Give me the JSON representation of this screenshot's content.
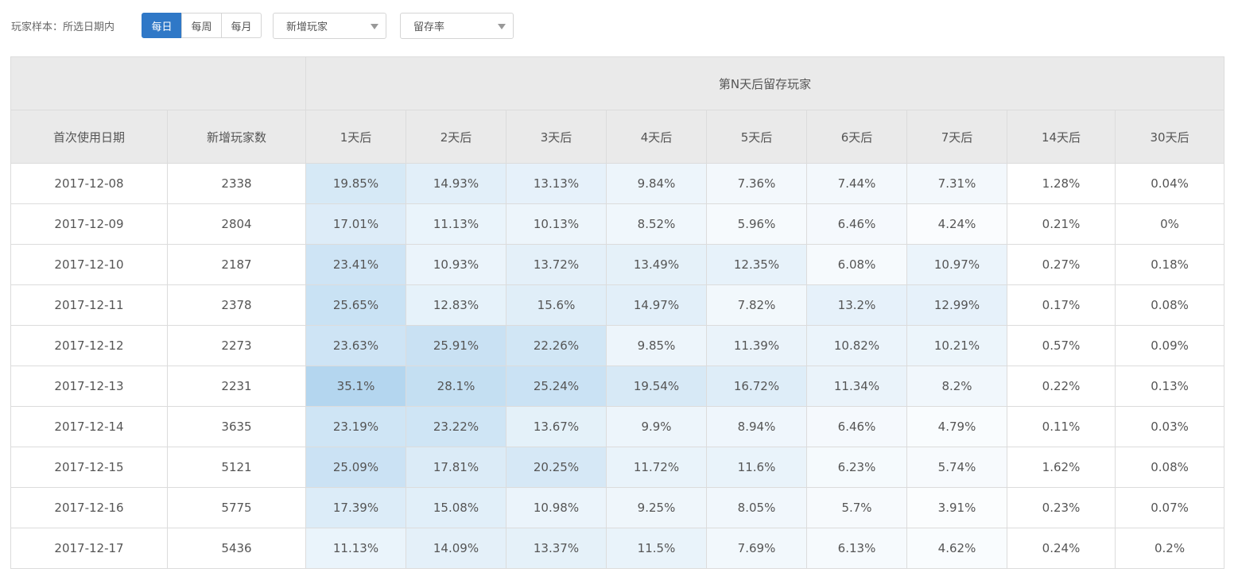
{
  "toolbar": {
    "sample_label": "玩家样本：所选日期内",
    "period_buttons": [
      "每日",
      "每周",
      "每月"
    ],
    "active_period_index": 0,
    "player_select": "新增玩家",
    "metric_select": "留存率"
  },
  "table": {
    "group_header": "第N天后留存玩家",
    "columns": [
      "首次使用日期",
      "新增玩家数",
      "1天后",
      "2天后",
      "3天后",
      "4天后",
      "5天后",
      "6天后",
      "7天后",
      "14天后",
      "30天后"
    ],
    "rows": [
      [
        "2017-12-08",
        "2338",
        "19.85%",
        "14.93%",
        "13.13%",
        "9.84%",
        "7.36%",
        "7.44%",
        "7.31%",
        "1.28%",
        "0.04%"
      ],
      [
        "2017-12-09",
        "2804",
        "17.01%",
        "11.13%",
        "10.13%",
        "8.52%",
        "5.96%",
        "6.46%",
        "4.24%",
        "0.21%",
        "0%"
      ],
      [
        "2017-12-10",
        "2187",
        "23.41%",
        "10.93%",
        "13.72%",
        "13.49%",
        "12.35%",
        "6.08%",
        "10.97%",
        "0.27%",
        "0.18%"
      ],
      [
        "2017-12-11",
        "2378",
        "25.65%",
        "12.83%",
        "15.6%",
        "14.97%",
        "7.82%",
        "13.2%",
        "12.99%",
        "0.17%",
        "0.08%"
      ],
      [
        "2017-12-12",
        "2273",
        "23.63%",
        "25.91%",
        "22.26%",
        "9.85%",
        "11.39%",
        "10.82%",
        "10.21%",
        "0.57%",
        "0.09%"
      ],
      [
        "2017-12-13",
        "2231",
        "35.1%",
        "28.1%",
        "25.24%",
        "19.54%",
        "16.72%",
        "11.34%",
        "8.2%",
        "0.22%",
        "0.13%"
      ],
      [
        "2017-12-14",
        "3635",
        "23.19%",
        "23.22%",
        "13.67%",
        "9.9%",
        "8.94%",
        "6.46%",
        "4.79%",
        "0.11%",
        "0.03%"
      ],
      [
        "2017-12-15",
        "5121",
        "25.09%",
        "17.81%",
        "20.25%",
        "11.72%",
        "11.6%",
        "6.23%",
        "5.74%",
        "1.62%",
        "0.08%"
      ],
      [
        "2017-12-16",
        "5775",
        "17.39%",
        "15.08%",
        "10.98%",
        "9.25%",
        "8.05%",
        "5.7%",
        "3.91%",
        "0.23%",
        "0.07%"
      ],
      [
        "2017-12-17",
        "5436",
        "11.13%",
        "14.09%",
        "13.37%",
        "11.5%",
        "7.69%",
        "6.13%",
        "4.62%",
        "0.24%",
        "0.2%"
      ]
    ]
  },
  "colors": {
    "active_button": "#2f78c7",
    "header_bg": "#eaeaea",
    "heat_low": "#ffffff",
    "heat_high": "#b4d6ef"
  }
}
